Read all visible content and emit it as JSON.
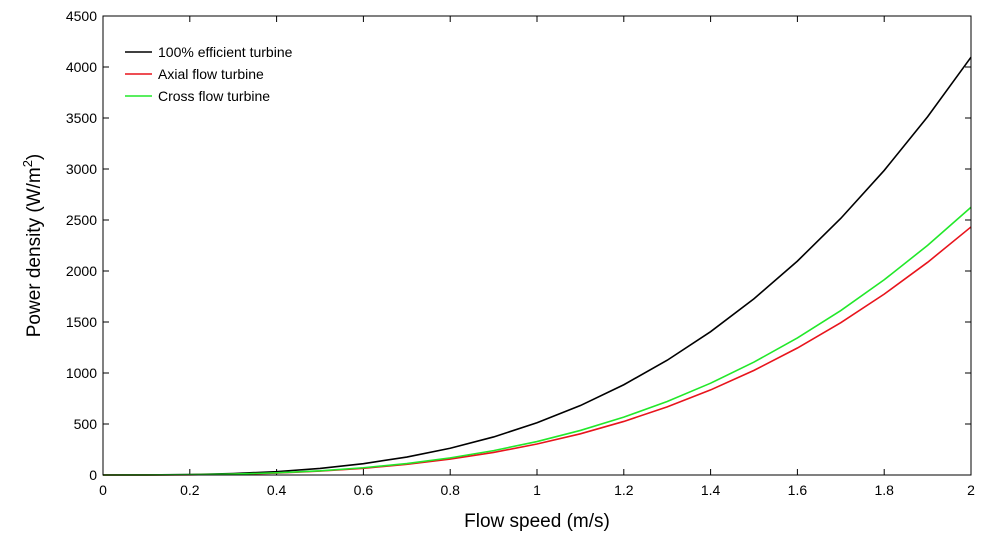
{
  "chart_data": {
    "type": "line",
    "xlabel": "Flow speed (m/s)",
    "ylabel": "Power density (W/m",
    "ylabel_sup": "2",
    "ylabel_end": ")",
    "xlim": [
      0,
      2
    ],
    "ylim": [
      0,
      4500
    ],
    "xticks": [
      0,
      0.2,
      0.4,
      0.6,
      0.8,
      1,
      1.2,
      1.4,
      1.6,
      1.8,
      2
    ],
    "xtick_labels": [
      "0",
      "0.2",
      "0.4",
      "0.6",
      "0.8",
      "1",
      "1.2",
      "1.4",
      "1.6",
      "1.8",
      "2"
    ],
    "yticks": [
      0,
      500,
      1000,
      1500,
      2000,
      2500,
      3000,
      3500,
      4000,
      4500
    ],
    "ytick_labels": [
      "0",
      "500",
      "1000",
      "1500",
      "2000",
      "2500",
      "3000",
      "3500",
      "4000",
      "4500"
    ],
    "grid": false,
    "legend_position": "top-left",
    "x": [
      0,
      0.1,
      0.2,
      0.3,
      0.4,
      0.5,
      0.6,
      0.7,
      0.8,
      0.9,
      1.0,
      1.1,
      1.2,
      1.3,
      1.4,
      1.5,
      1.6,
      1.7,
      1.8,
      1.9,
      2.0
    ],
    "series": [
      {
        "name": "100% efficient turbine",
        "color": "#000000",
        "values": [
          0,
          0.5,
          4,
          14,
          33,
          64,
          111,
          176,
          262,
          373,
          512,
          681,
          885,
          1125,
          1405,
          1728,
          2097,
          2516,
          2986,
          3512,
          4096
        ]
      },
      {
        "name": "Axial flow turbine",
        "color": "#e8141c",
        "values": [
          0,
          0.3,
          2,
          8,
          19,
          38,
          66,
          104,
          156,
          221,
          304,
          404,
          525,
          668,
          834,
          1026,
          1245,
          1493,
          1773,
          2085,
          2432
        ]
      },
      {
        "name": "Cross flow turbine",
        "color": "#22e82a",
        "values": [
          0,
          0.3,
          3,
          9,
          21,
          41,
          71,
          112,
          168,
          239,
          328,
          437,
          567,
          721,
          900,
          1107,
          1344,
          1612,
          1914,
          2251,
          2625
        ]
      }
    ]
  }
}
